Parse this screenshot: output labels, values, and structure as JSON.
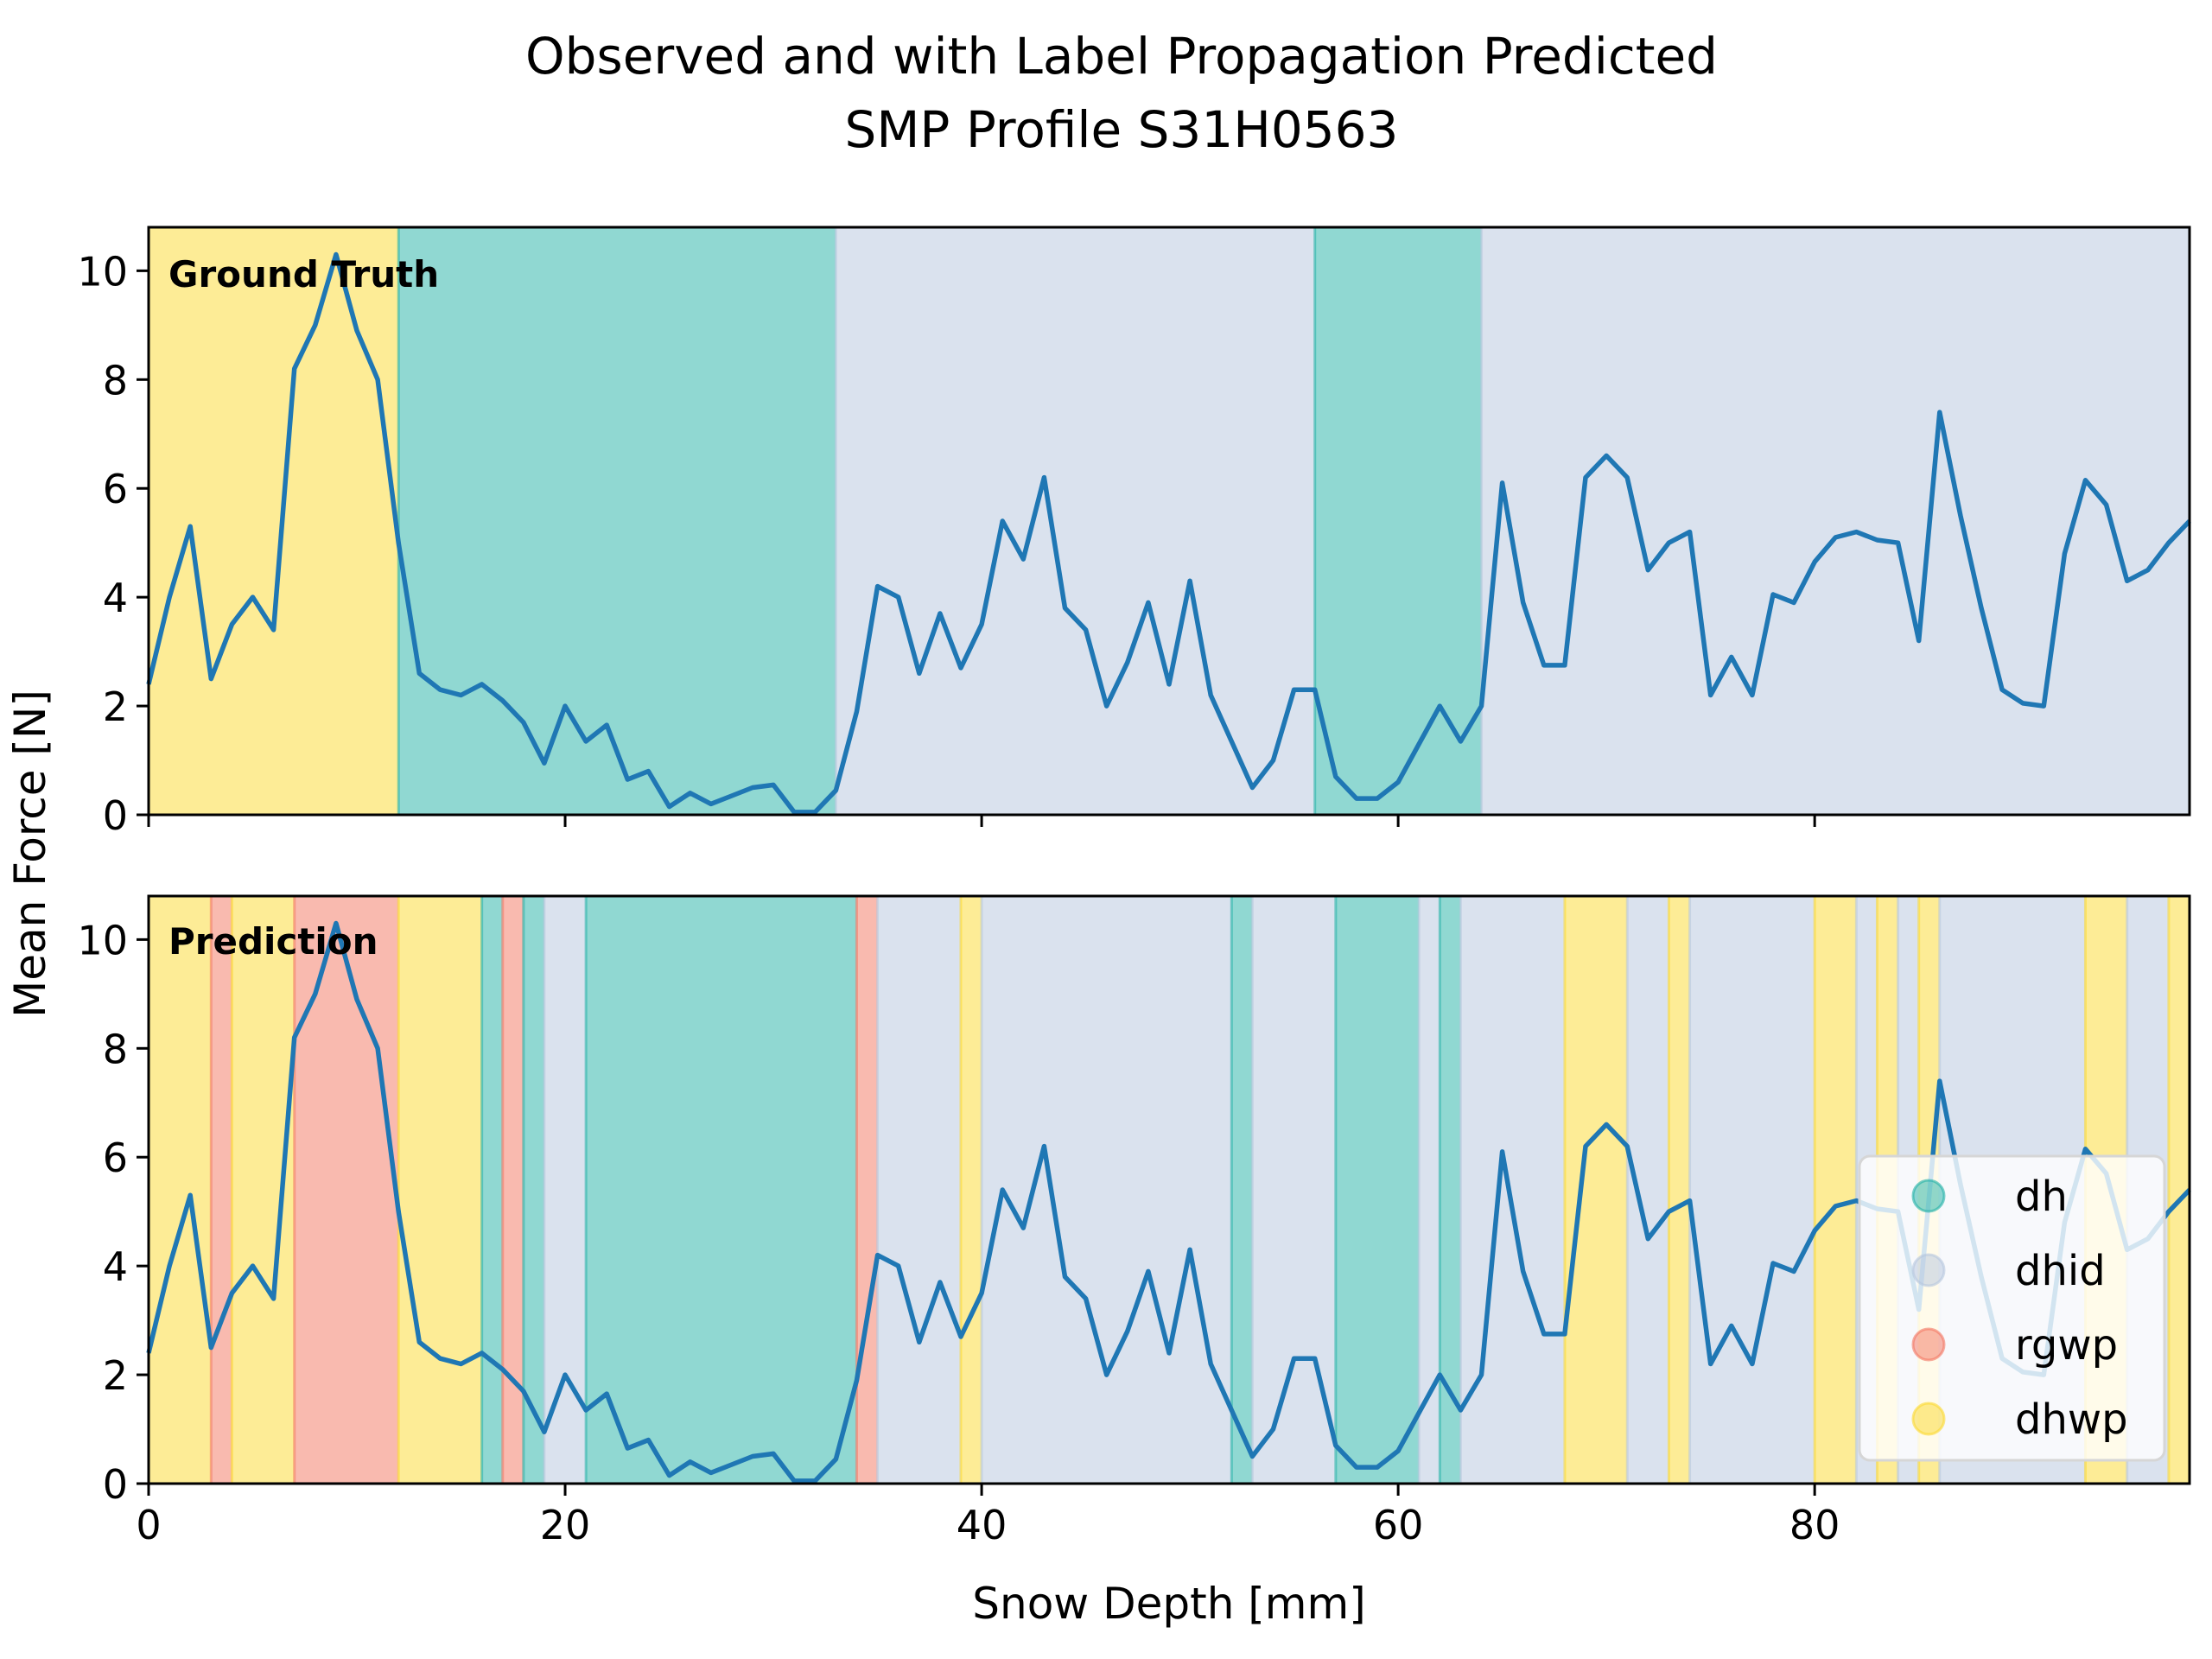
{
  "title_line1": "Observed and with Label Propagation Predicted",
  "title_line2": "SMP Profile S31H0563",
  "xlabel": "Snow Depth [mm]",
  "ylabel": "Mean Force [N]",
  "panel1_label": "Ground Truth",
  "panel2_label": "Prediction",
  "x_ticks": [
    "0",
    "20",
    "40",
    "60",
    "80"
  ],
  "y_ticks": [
    "0",
    "2",
    "4",
    "6",
    "8",
    "10"
  ],
  "legend": [
    {
      "label": "dh",
      "color": "#21b1a6"
    },
    {
      "label": "dhid",
      "color": "#b6c6dd"
    },
    {
      "label": "rgwp",
      "color": "#f47560"
    },
    {
      "label": "dhwp",
      "color": "#fcd92e"
    }
  ],
  "colors": {
    "line": "#1f77b4",
    "dh": "#21b1a6",
    "dhid": "#b6c6dd",
    "rgwp": "#f47560",
    "dhwp": "#fcd92e"
  },
  "chart_data": {
    "type": "line",
    "xlim": [
      0,
      98
    ],
    "ylim": [
      0,
      10.8
    ],
    "grid": false,
    "legend_position": "lower-right (prediction panel)",
    "series": [
      {
        "x": [
          0,
          1,
          2,
          3,
          4,
          5,
          6,
          7,
          8,
          9,
          10,
          11,
          12,
          13,
          14,
          15,
          16,
          17,
          18,
          19,
          20,
          21,
          22,
          23,
          24,
          25,
          26,
          27,
          28,
          29,
          30,
          31,
          32,
          33,
          34,
          35,
          36,
          37,
          38,
          39,
          40,
          41,
          42,
          43,
          44,
          45,
          46,
          47,
          48,
          49,
          50,
          51,
          52,
          53,
          54,
          55,
          56,
          57,
          58,
          59,
          60,
          61,
          62,
          63,
          64,
          65,
          66,
          67,
          68,
          69,
          70,
          71,
          72,
          73,
          74,
          75,
          76,
          77,
          78,
          79,
          80,
          81,
          82,
          83,
          84,
          85,
          86,
          87,
          88,
          89,
          90,
          91,
          92,
          93,
          94,
          95,
          96,
          97,
          98
        ],
        "values": [
          2.4,
          4.0,
          5.3,
          2.5,
          3.5,
          4.0,
          3.4,
          8.2,
          9.0,
          10.3,
          8.9,
          8.0,
          5.0,
          2.6,
          2.3,
          2.2,
          2.4,
          2.1,
          1.7,
          0.95,
          2.0,
          1.35,
          1.65,
          0.65,
          0.8,
          0.15,
          0.4,
          0.2,
          0.35,
          0.5,
          0.55,
          0.05,
          0.05,
          0.45,
          1.9,
          4.2,
          4.0,
          2.6,
          3.7,
          2.7,
          3.5,
          5.4,
          4.7,
          6.2,
          3.8,
          3.4,
          2.0,
          2.8,
          3.9,
          2.4,
          4.3,
          2.2,
          1.35,
          0.5,
          1.0,
          2.3,
          2.3,
          0.7,
          0.3,
          0.3,
          0.6,
          1.3,
          2.0,
          1.35,
          2.0,
          6.1,
          3.9,
          2.75,
          2.75,
          6.2,
          6.6,
          6.2,
          4.5,
          5.0,
          5.2,
          2.2,
          2.9,
          2.2,
          4.05,
          3.9,
          4.65,
          5.1,
          5.2,
          5.05,
          5.0,
          3.2,
          7.4,
          5.5,
          3.8,
          2.3,
          2.05,
          2.0,
          4.8,
          6.15,
          5.7,
          4.3,
          4.5,
          5.0,
          5.4
        ]
      }
    ],
    "ground_truth_segments": [
      {
        "from": 0,
        "to": 12,
        "label": "dhwp"
      },
      {
        "from": 12,
        "to": 33,
        "label": "dh"
      },
      {
        "from": 33,
        "to": 56,
        "label": "dhid"
      },
      {
        "from": 56,
        "to": 64,
        "label": "dh"
      },
      {
        "from": 64,
        "to": 98,
        "label": "dhid"
      }
    ],
    "prediction_segments": [
      {
        "from": 0,
        "to": 3,
        "label": "dhwp"
      },
      {
        "from": 3,
        "to": 4,
        "label": "rgwp"
      },
      {
        "from": 4,
        "to": 7,
        "label": "dhwp"
      },
      {
        "from": 7,
        "to": 12,
        "label": "rgwp"
      },
      {
        "from": 12,
        "to": 16,
        "label": "dhwp"
      },
      {
        "from": 16,
        "to": 17,
        "label": "dh"
      },
      {
        "from": 17,
        "to": 18,
        "label": "rgwp"
      },
      {
        "from": 18,
        "to": 19,
        "label": "dh"
      },
      {
        "from": 19,
        "to": 21,
        "label": "dhid"
      },
      {
        "from": 21,
        "to": 34,
        "label": "dh"
      },
      {
        "from": 34,
        "to": 35,
        "label": "rgwp"
      },
      {
        "from": 35,
        "to": 39,
        "label": "dhid"
      },
      {
        "from": 39,
        "to": 40,
        "label": "dhwp"
      },
      {
        "from": 40,
        "to": 52,
        "label": "dhid"
      },
      {
        "from": 52,
        "to": 53,
        "label": "dh"
      },
      {
        "from": 53,
        "to": 57,
        "label": "dhid"
      },
      {
        "from": 57,
        "to": 61,
        "label": "dh"
      },
      {
        "from": 61,
        "to": 62,
        "label": "dhid"
      },
      {
        "from": 62,
        "to": 63,
        "label": "dh"
      },
      {
        "from": 63,
        "to": 68,
        "label": "dhid"
      },
      {
        "from": 68,
        "to": 71,
        "label": "dhwp"
      },
      {
        "from": 71,
        "to": 73,
        "label": "dhid"
      },
      {
        "from": 73,
        "to": 74,
        "label": "dhwp"
      },
      {
        "from": 74,
        "to": 80,
        "label": "dhid"
      },
      {
        "from": 80,
        "to": 82,
        "label": "dhwp"
      },
      {
        "from": 82,
        "to": 83,
        "label": "dhid"
      },
      {
        "from": 83,
        "to": 84,
        "label": "dhwp"
      },
      {
        "from": 84,
        "to": 85,
        "label": "dhid"
      },
      {
        "from": 85,
        "to": 86,
        "label": "dhwp"
      },
      {
        "from": 86,
        "to": 93,
        "label": "dhid"
      },
      {
        "from": 93,
        "to": 95,
        "label": "dhwp"
      },
      {
        "from": 95,
        "to": 97,
        "label": "dhid"
      },
      {
        "from": 97,
        "to": 98,
        "label": "dhwp"
      }
    ]
  }
}
